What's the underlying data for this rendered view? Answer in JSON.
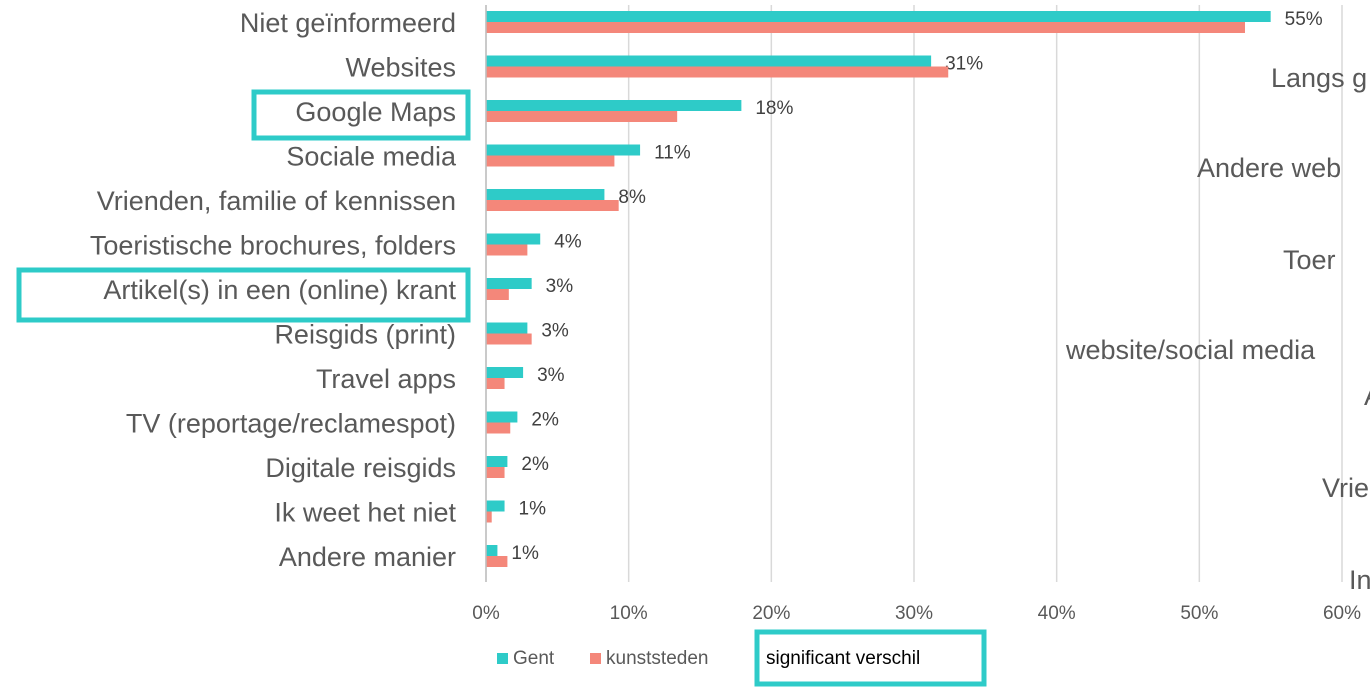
{
  "chart_data": {
    "type": "bar",
    "orientation": "horizontal",
    "categories": [
      "Niet geïnformeerd",
      "Websites",
      "Google Maps",
      "Sociale media",
      "Vrienden, familie of kennissen",
      "Toeristische brochures, folders",
      "Artikel(s) in een (online) krant",
      "Reisgids (print)",
      "Travel apps",
      "TV (reportage/reclamespot)",
      "Digitale reisgids",
      "Ik weet het niet",
      "Andere manier"
    ],
    "series": [
      {
        "name": "Gent",
        "color": "#2ecbc8",
        "values": [
          55,
          31.2,
          17.9,
          10.8,
          8.3,
          3.8,
          3.2,
          2.9,
          2.6,
          2.2,
          1.5,
          1.3,
          0.8
        ],
        "value_labels": [
          "55%",
          "31%",
          "18%",
          "11%",
          "8%",
          "4%",
          "3%",
          "3%",
          "3%",
          "2%",
          "2%",
          "1%",
          "1%"
        ]
      },
      {
        "name": "kunststeden",
        "color": "#f4877a",
        "values": [
          53.2,
          32.4,
          13.4,
          9.0,
          9.3,
          2.9,
          1.6,
          3.2,
          1.3,
          1.7,
          1.3,
          0.4,
          1.5
        ]
      }
    ],
    "xlim": [
      0,
      60
    ],
    "xticks": [
      {
        "value": 0,
        "label": "0%"
      },
      {
        "value": 10,
        "label": "10%"
      },
      {
        "value": 20,
        "label": "20%"
      },
      {
        "value": 30,
        "label": "30%"
      },
      {
        "value": 40,
        "label": "40%"
      },
      {
        "value": 50,
        "label": "50%"
      },
      {
        "value": 60,
        "label": "60%"
      }
    ],
    "grid": true,
    "legend_note": "significant verschil"
  },
  "clipped_labels": [
    "Langs g",
    "Andere web",
    "Toer",
    "website/social media",
    "A",
    "Vrie",
    "In"
  ]
}
